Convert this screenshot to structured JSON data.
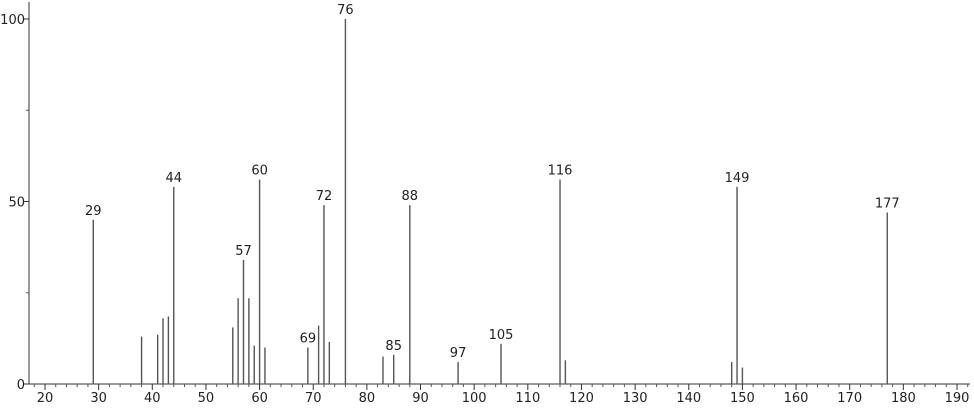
{
  "chart_data": {
    "type": "bar",
    "title": "",
    "xlabel": "",
    "ylabel": "",
    "xlim": [
      17,
      193
    ],
    "ylim": [
      0,
      100
    ],
    "x_ticks": [
      20,
      30,
      40,
      50,
      60,
      70,
      80,
      90,
      100,
      110,
      120,
      130,
      140,
      150,
      160,
      170,
      180,
      190
    ],
    "y_ticks": [
      0,
      50,
      100
    ],
    "grid": false,
    "bar_color": "#555555",
    "peaks": [
      {
        "x": 29,
        "y": 45,
        "label": "29"
      },
      {
        "x": 38,
        "y": 13
      },
      {
        "x": 41,
        "y": 13.5
      },
      {
        "x": 42,
        "y": 18
      },
      {
        "x": 43,
        "y": 18.5
      },
      {
        "x": 44,
        "y": 54,
        "label": "44"
      },
      {
        "x": 55,
        "y": 15.5
      },
      {
        "x": 56,
        "y": 23.5
      },
      {
        "x": 57,
        "y": 34,
        "label": "57"
      },
      {
        "x": 58,
        "y": 23.5
      },
      {
        "x": 59,
        "y": 10.5
      },
      {
        "x": 60,
        "y": 56,
        "label": "60"
      },
      {
        "x": 61,
        "y": 10
      },
      {
        "x": 69,
        "y": 10,
        "label": "69"
      },
      {
        "x": 71,
        "y": 16
      },
      {
        "x": 72,
        "y": 49,
        "label": "72"
      },
      {
        "x": 73,
        "y": 11.5
      },
      {
        "x": 76,
        "y": 100,
        "label": "76"
      },
      {
        "x": 83,
        "y": 7.5
      },
      {
        "x": 85,
        "y": 8,
        "label": "85"
      },
      {
        "x": 88,
        "y": 49,
        "label": "88"
      },
      {
        "x": 97,
        "y": 6,
        "label": "97"
      },
      {
        "x": 105,
        "y": 11,
        "label": "105"
      },
      {
        "x": 116,
        "y": 56,
        "label": "116"
      },
      {
        "x": 117,
        "y": 6.5
      },
      {
        "x": 148,
        "y": 6
      },
      {
        "x": 149,
        "y": 54,
        "label": "149"
      },
      {
        "x": 150,
        "y": 4.5
      },
      {
        "x": 177,
        "y": 47,
        "label": "177"
      }
    ]
  }
}
